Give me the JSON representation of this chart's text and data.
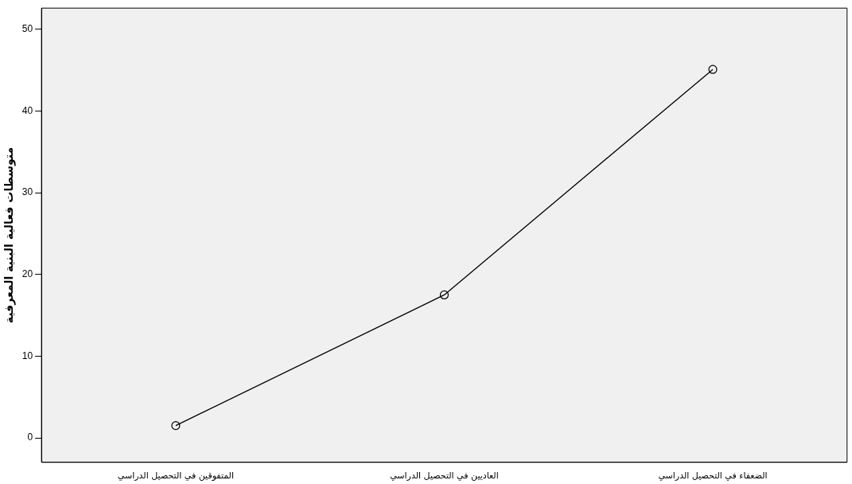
{
  "chart_data": {
    "type": "line",
    "ylabel": "متوسطات فعالية البنية المعرفية",
    "categories": [
      "المتفوقين في التحصيل الدراسي",
      "العاديين في التحصيل الدراسي",
      "الضعفاء في التحصيل الدراسي"
    ],
    "series": [
      {
        "color": "#000000",
        "values": [
          1.5,
          17.5,
          45.1
        ]
      }
    ],
    "ylim": [
      -3,
      52.6
    ],
    "yticks": [
      0,
      10,
      20,
      30,
      40,
      50
    ],
    "grid": false,
    "legend": false,
    "marker": "circle",
    "line_style": "solid"
  }
}
